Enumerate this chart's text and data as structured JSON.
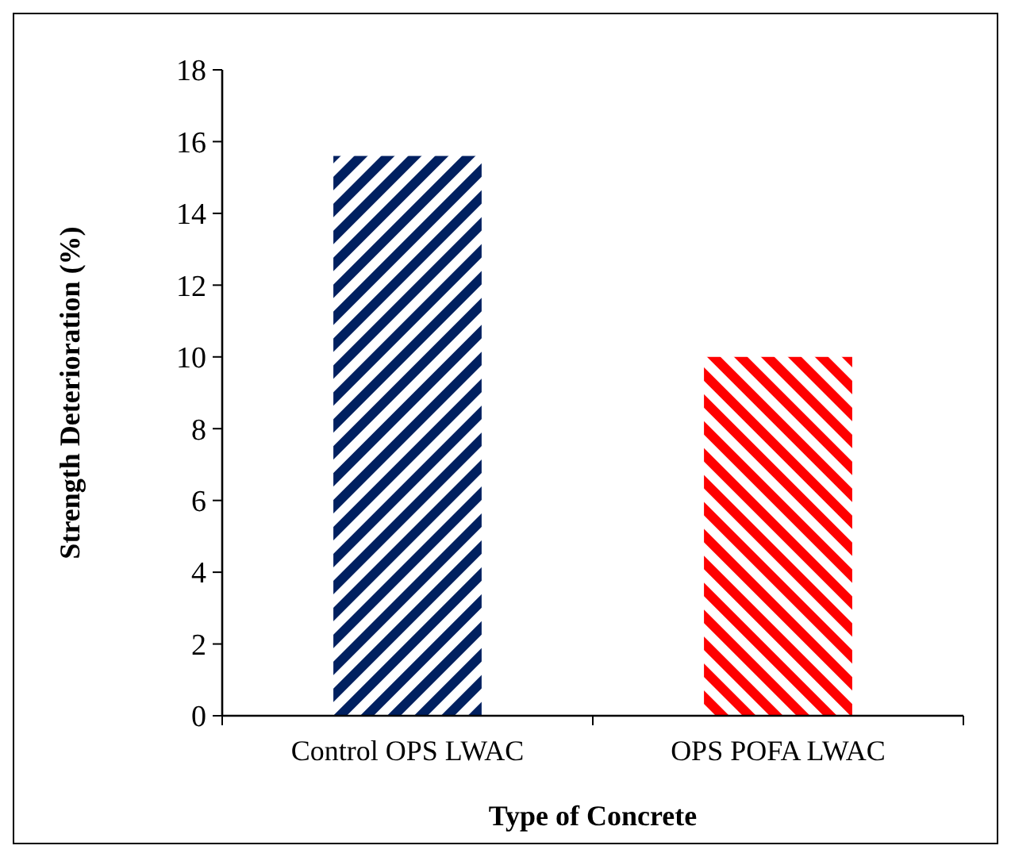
{
  "chart_data": {
    "type": "bar",
    "xlabel": "Type of Concrete",
    "ylabel": "Strength Deterioration (%)",
    "categories": [
      "Control OPS LWAC",
      "OPS POFA LWAC"
    ],
    "values": [
      15.6,
      10.0
    ],
    "colors": [
      "#002060",
      "#ff0000"
    ],
    "ylim": [
      0,
      18
    ],
    "yticks": [
      0,
      2,
      4,
      6,
      8,
      10,
      12,
      14,
      16,
      18
    ],
    "grid": false
  }
}
